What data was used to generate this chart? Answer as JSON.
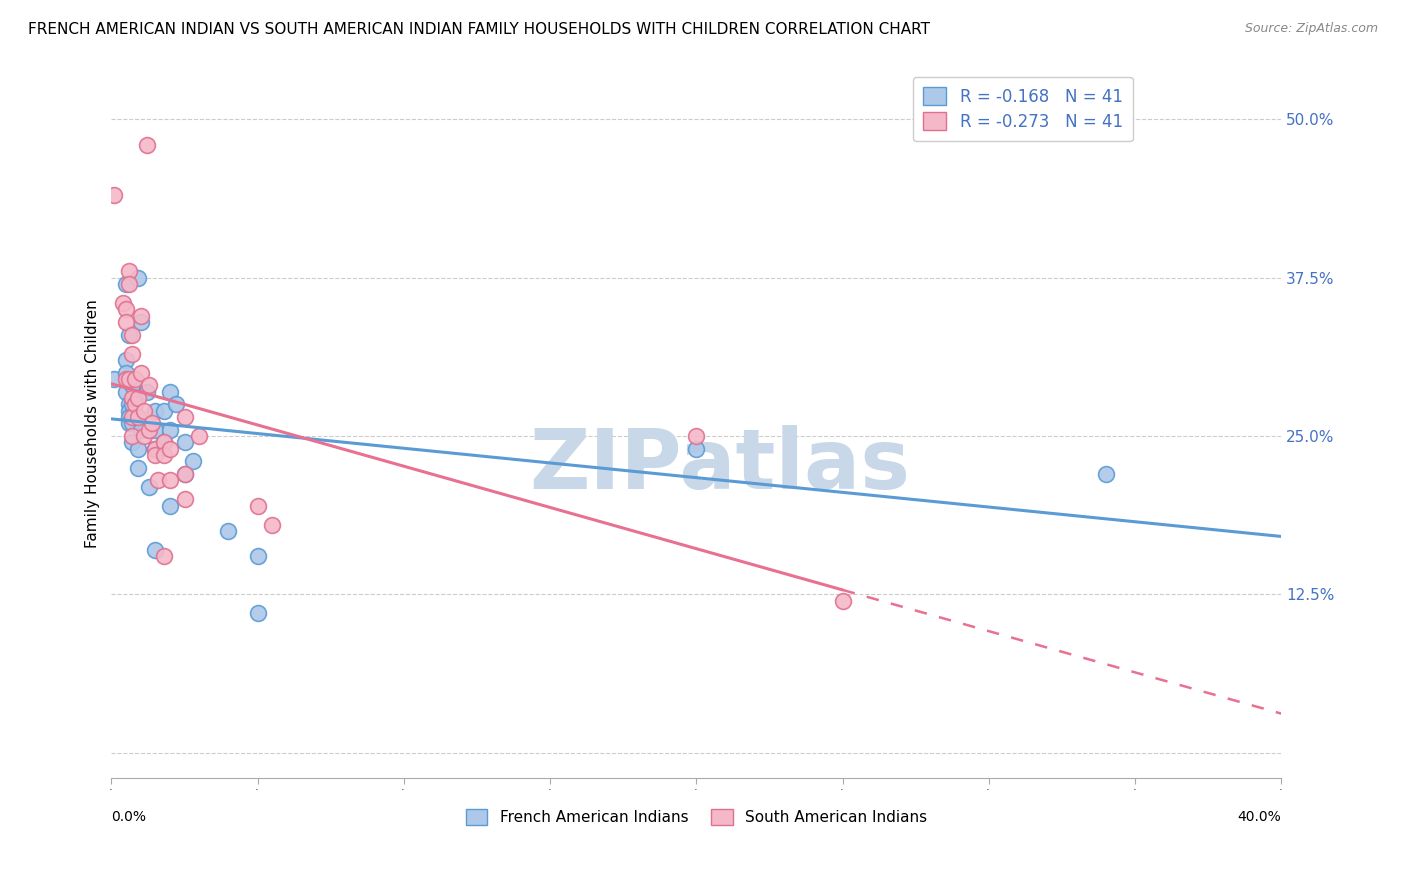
{
  "title": "FRENCH AMERICAN INDIAN VS SOUTH AMERICAN INDIAN FAMILY HOUSEHOLDS WITH CHILDREN CORRELATION CHART",
  "source": "Source: ZipAtlas.com",
  "ylabel": "Family Households with Children",
  "watermark": "ZIPatlas",
  "xlim": [
    0.0,
    0.4
  ],
  "ylim": [
    -0.02,
    0.54
  ],
  "yticks": [
    0.0,
    0.125,
    0.25,
    0.375,
    0.5
  ],
  "ytick_labels": [
    "",
    "12.5%",
    "25.0%",
    "37.5%",
    "50.0%"
  ],
  "xtick_left": "0.0%",
  "xtick_right": "40.0%",
  "legend_blue_label": "R = -0.168   N = 41",
  "legend_pink_label": "R = -0.273   N = 41",
  "bottom_blue_label": "French American Indians",
  "bottom_pink_label": "South American Indians",
  "blue_scatter": [
    [
      0.001,
      0.295
    ],
    [
      0.005,
      0.37
    ],
    [
      0.006,
      0.33
    ],
    [
      0.005,
      0.31
    ],
    [
      0.005,
      0.3
    ],
    [
      0.005,
      0.285
    ],
    [
      0.006,
      0.275
    ],
    [
      0.006,
      0.27
    ],
    [
      0.006,
      0.265
    ],
    [
      0.006,
      0.26
    ],
    [
      0.007,
      0.29
    ],
    [
      0.007,
      0.275
    ],
    [
      0.007,
      0.26
    ],
    [
      0.007,
      0.245
    ],
    [
      0.008,
      0.28
    ],
    [
      0.008,
      0.265
    ],
    [
      0.009,
      0.375
    ],
    [
      0.009,
      0.24
    ],
    [
      0.009,
      0.225
    ],
    [
      0.01,
      0.34
    ],
    [
      0.01,
      0.255
    ],
    [
      0.012,
      0.285
    ],
    [
      0.013,
      0.21
    ],
    [
      0.015,
      0.27
    ],
    [
      0.015,
      0.255
    ],
    [
      0.015,
      0.24
    ],
    [
      0.015,
      0.16
    ],
    [
      0.018,
      0.27
    ],
    [
      0.018,
      0.245
    ],
    [
      0.02,
      0.285
    ],
    [
      0.02,
      0.255
    ],
    [
      0.02,
      0.195
    ],
    [
      0.022,
      0.275
    ],
    [
      0.025,
      0.245
    ],
    [
      0.025,
      0.22
    ],
    [
      0.028,
      0.23
    ],
    [
      0.04,
      0.175
    ],
    [
      0.05,
      0.155
    ],
    [
      0.05,
      0.11
    ],
    [
      0.2,
      0.24
    ],
    [
      0.34,
      0.22
    ]
  ],
  "pink_scatter": [
    [
      0.001,
      0.44
    ],
    [
      0.004,
      0.355
    ],
    [
      0.005,
      0.35
    ],
    [
      0.005,
      0.34
    ],
    [
      0.005,
      0.295
    ],
    [
      0.006,
      0.38
    ],
    [
      0.006,
      0.37
    ],
    [
      0.006,
      0.295
    ],
    [
      0.007,
      0.33
    ],
    [
      0.007,
      0.315
    ],
    [
      0.007,
      0.28
    ],
    [
      0.007,
      0.265
    ],
    [
      0.007,
      0.25
    ],
    [
      0.008,
      0.295
    ],
    [
      0.008,
      0.275
    ],
    [
      0.009,
      0.28
    ],
    [
      0.009,
      0.265
    ],
    [
      0.01,
      0.345
    ],
    [
      0.01,
      0.3
    ],
    [
      0.011,
      0.27
    ],
    [
      0.011,
      0.25
    ],
    [
      0.012,
      0.48
    ],
    [
      0.013,
      0.29
    ],
    [
      0.013,
      0.255
    ],
    [
      0.014,
      0.26
    ],
    [
      0.015,
      0.24
    ],
    [
      0.015,
      0.235
    ],
    [
      0.016,
      0.215
    ],
    [
      0.018,
      0.245
    ],
    [
      0.018,
      0.235
    ],
    [
      0.018,
      0.155
    ],
    [
      0.02,
      0.24
    ],
    [
      0.02,
      0.215
    ],
    [
      0.025,
      0.265
    ],
    [
      0.025,
      0.22
    ],
    [
      0.025,
      0.2
    ],
    [
      0.03,
      0.25
    ],
    [
      0.05,
      0.195
    ],
    [
      0.055,
      0.18
    ],
    [
      0.2,
      0.25
    ],
    [
      0.25,
      0.12
    ]
  ],
  "blue_edge_color": "#5b9bd5",
  "blue_face_color": "#adc8e8",
  "pink_edge_color": "#e07090",
  "pink_face_color": "#f4b8c8",
  "blue_line_color": "#5b9bd5",
  "pink_line_color": "#e87090",
  "background_color": "#ffffff",
  "grid_color": "#cccccc",
  "title_fontsize": 11,
  "source_fontsize": 9,
  "axis_label_fontsize": 11,
  "tick_fontsize": 11,
  "watermark_color": "#c8d8e8",
  "watermark_fontsize": 60
}
